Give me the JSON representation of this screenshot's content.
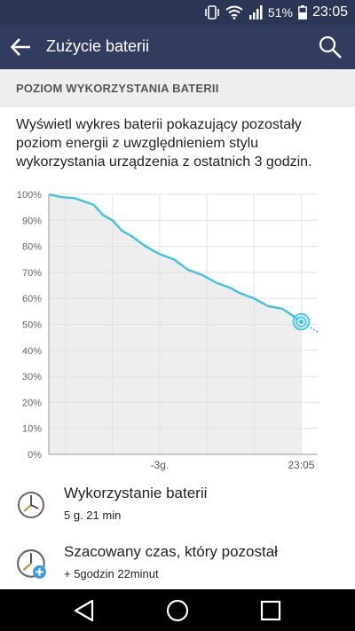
{
  "status_bar": {
    "battery_percent": "51%",
    "time": "23:05"
  },
  "app_bar": {
    "title": "Zużycie baterii",
    "back_icon": "arrow-left-icon",
    "search_icon": "search-icon"
  },
  "section_header": "POZIOM WYKORZYSTANIA BATERII",
  "description": "Wyświetl wykres baterii pokazujący pozostały poziom energii z uwzględnieniem stylu wykorzystania urządzenia z ostatnich 3 godzin.",
  "chart_data": {
    "type": "line",
    "y_ticks": [
      "100%",
      "90%",
      "80%",
      "70%",
      "60%",
      "50%",
      "40%",
      "30%",
      "20%",
      "10%",
      "0%"
    ],
    "x_tick_labels": [
      "-3g.",
      "23:05"
    ],
    "ylim": [
      0,
      100
    ],
    "xlim": [
      -5.35,
      0.35
    ],
    "x_tick_positions": [
      -3,
      0
    ],
    "grid": true,
    "series": [
      {
        "values_x": [
          -5.35,
          -5.1,
          -4.8,
          -4.4,
          -4.2,
          -4.0,
          -3.8,
          -3.6,
          -3.3,
          -3.0,
          -2.7,
          -2.4,
          -2.1,
          -1.8,
          -1.5,
          -1.3,
          -1.0,
          -0.7,
          -0.4,
          -0.15,
          0.0
        ],
        "values_y": [
          100,
          99,
          98.5,
          96,
          92,
          90,
          86,
          84,
          80,
          77,
          75,
          71,
          69,
          66,
          64,
          62,
          60,
          57,
          56,
          53,
          51
        ]
      }
    ],
    "projection": {
      "values_x": [
        0.0,
        0.35
      ],
      "values_y": [
        51,
        47
      ]
    },
    "colors": {
      "line": "#3ec5dd",
      "fill": "#eeeeee",
      "grid": "#e2e2e2",
      "axis": "#999999"
    }
  },
  "items": [
    {
      "label": "Wykorzystanie baterii",
      "value": "5 g. 21 min",
      "icon": "clock-icon"
    },
    {
      "label": "Szacowany czas, który pozostał",
      "value": "+ 5godzin 22minut",
      "icon": "clock-plus-icon"
    }
  ],
  "nav_bar": {
    "back": "nav-back-icon",
    "home": "nav-home-icon",
    "recents": "nav-recents-icon"
  }
}
